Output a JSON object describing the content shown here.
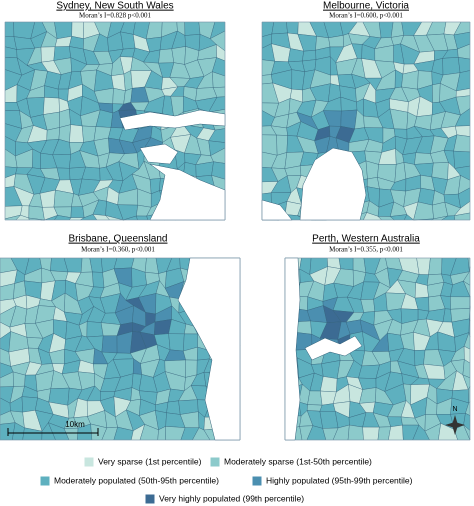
{
  "panels": [
    {
      "title": "Sydney, New South Wales",
      "subtitle": "Moran’s I=0.828 p<0.001"
    },
    {
      "title": "Melbourne, Victoria",
      "subtitle": "Moran’s I=0.600, p<0.001"
    },
    {
      "title": "Brisbane, Queensland",
      "subtitle": "Moran’s I=0.360, p<0.001"
    },
    {
      "title": "Perth, Western Australia",
      "subtitle": "Moran’s I=0.355, p<0.001"
    }
  ],
  "scale_bar": "10km",
  "north_arrow": "N",
  "legend": {
    "items": [
      {
        "label": "Very sparse (1st percentile)",
        "color": "#c8e6df"
      },
      {
        "label": "Moderately sparse (1st-50th percentile)",
        "color": "#8ccacb"
      },
      {
        "label": "Moderately populated (50th-95th percentile)",
        "color": "#5eb0bf"
      },
      {
        "label": "Highly populated (95th-99th percentile)",
        "color": "#4b8fb0"
      },
      {
        "label": "Very highly populated (99th percentile)",
        "color": "#3c6b93"
      }
    ]
  }
}
